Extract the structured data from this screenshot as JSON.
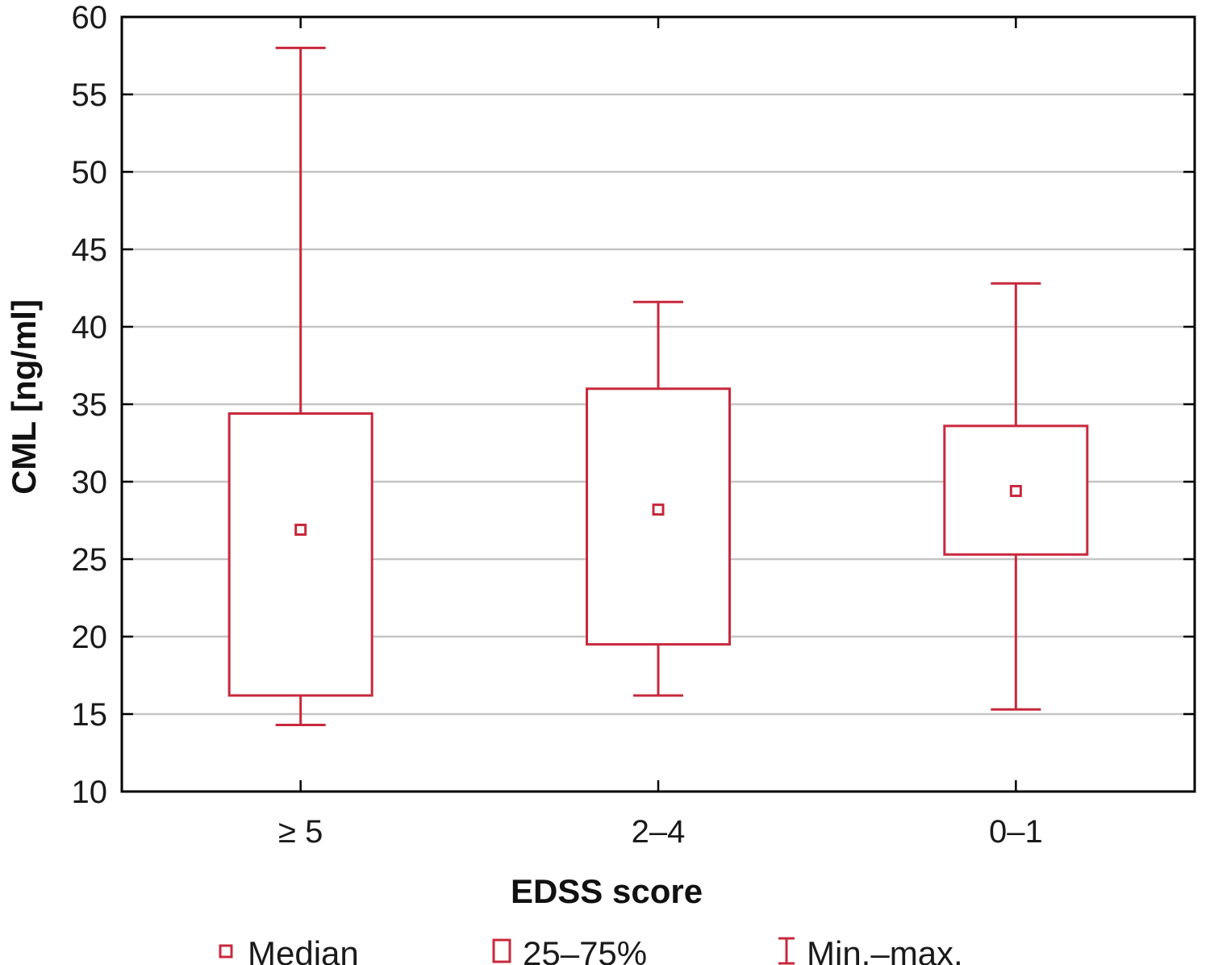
{
  "chart_data": {
    "type": "box",
    "title": "",
    "xlabel": "EDSS score",
    "ylabel": "CML [ng/ml]",
    "ylim": [
      10,
      60
    ],
    "yticks": [
      10,
      15,
      20,
      25,
      30,
      35,
      40,
      45,
      50,
      55,
      60
    ],
    "grid": true,
    "legend_position": "bottom",
    "colors": {
      "box": "#c8283c",
      "grid": "#c4c4c4",
      "axis": "#000000"
    },
    "categories": [
      "≥ 5",
      "2–4",
      "0–1"
    ],
    "series": [
      {
        "category": "≥ 5",
        "min": 14.3,
        "q1": 16.2,
        "median": 26.9,
        "q3": 34.4,
        "max": 58.0
      },
      {
        "category": "2–4",
        "min": 16.2,
        "q1": 19.5,
        "median": 28.2,
        "q3": 36.0,
        "max": 41.6
      },
      {
        "category": "0–1",
        "min": 15.3,
        "q1": 25.3,
        "median": 29.4,
        "q3": 33.6,
        "max": 42.8
      }
    ],
    "legend": [
      {
        "key": "median",
        "label": "Median"
      },
      {
        "key": "iqr",
        "label": "25–75%"
      },
      {
        "key": "range",
        "label": "Min.–max."
      }
    ]
  }
}
